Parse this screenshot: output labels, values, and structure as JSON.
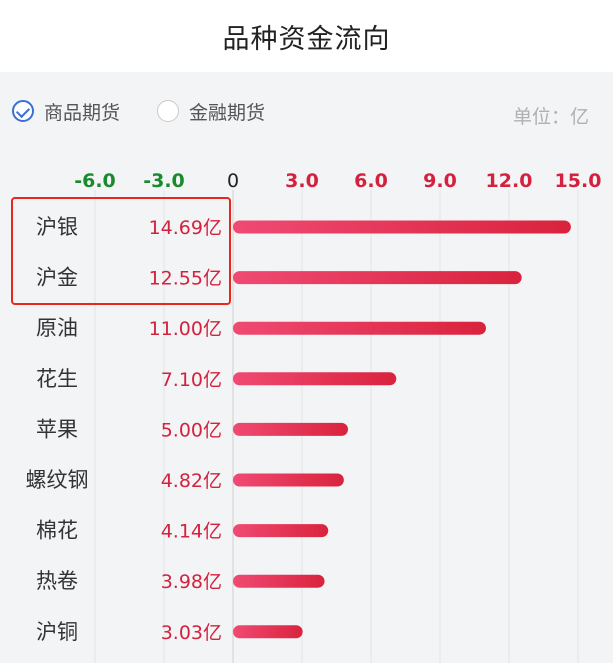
{
  "header": {
    "title": "品种资金流向"
  },
  "filters": {
    "options": [
      {
        "label": "商品期货",
        "checked": true
      },
      {
        "label": "金融期货",
        "checked": false
      }
    ],
    "unit": "单位：亿"
  },
  "colors": {
    "positive_tick": "#d4213d",
    "negative_tick": "#1a8a2e",
    "zero_tick": "#222222",
    "bar_start": "#f04a73",
    "bar_end": "#d9233d",
    "value_text": "#d4213d",
    "highlight_box": "#e8271e"
  },
  "chart_data": {
    "type": "bar",
    "orientation": "horizontal",
    "title": "",
    "xlim": [
      -6,
      15
    ],
    "xticks": [
      "-6.0",
      "-3.0",
      "0",
      "3.0",
      "6.0",
      "9.0",
      "12.0",
      "15.0"
    ],
    "xtick_values": [
      -6,
      -3,
      0,
      3,
      6,
      9,
      12,
      15
    ],
    "categories": [
      "沪银",
      "沪金",
      "原油",
      "花生",
      "苹果",
      "螺纹钢",
      "棉花",
      "热卷",
      "沪铜"
    ],
    "values": [
      14.69,
      12.55,
      11.0,
      7.1,
      5.0,
      4.82,
      4.14,
      3.98,
      3.03
    ],
    "value_labels": [
      "14.69亿",
      "12.55亿",
      "11.00亿",
      "7.10亿",
      "5.00亿",
      "4.82亿",
      "4.14亿",
      "3.98亿",
      "3.03亿"
    ],
    "grid": true,
    "highlighted_categories": [
      "沪银",
      "沪金"
    ]
  }
}
